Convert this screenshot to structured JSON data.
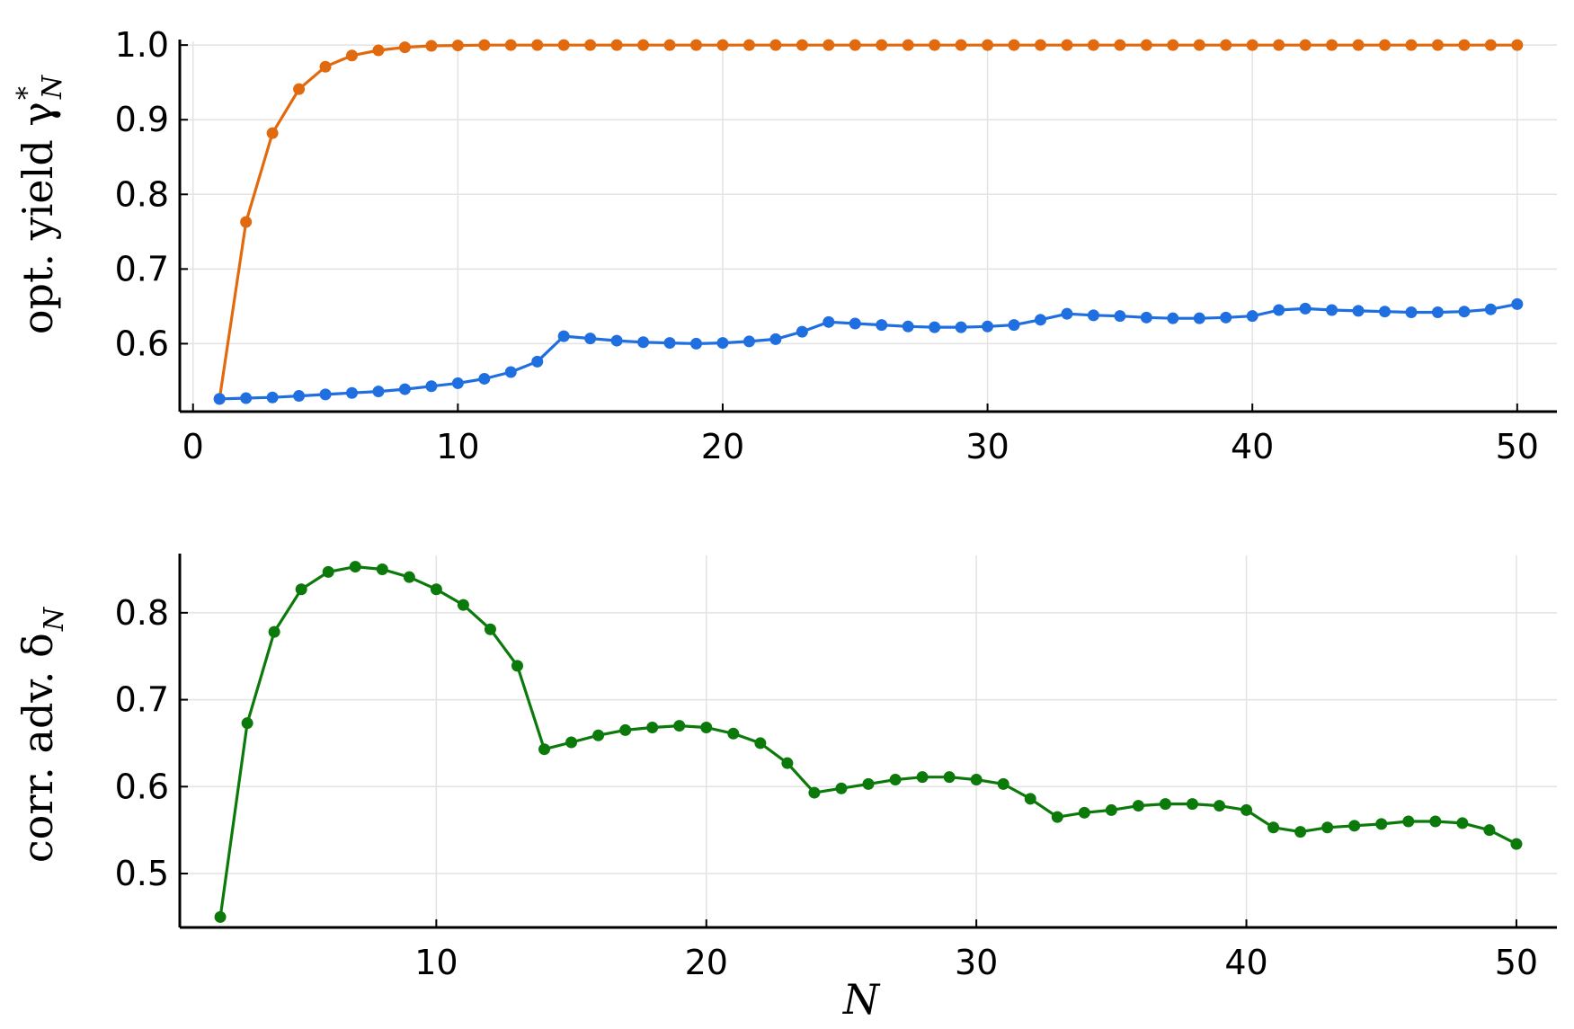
{
  "chart_data": [
    {
      "type": "line",
      "ylabel": "opt. yield γ",
      "ylabel_sup": "*",
      "ylabel_sub": "N",
      "xlim": [
        -0.5,
        51.5
      ],
      "ylim": [
        0.509,
        1.005
      ],
      "xticks": [
        0,
        10,
        20,
        30,
        40,
        50
      ],
      "yticks": [
        0.6,
        0.7,
        0.8,
        0.9,
        1.0
      ],
      "ytick_labels": [
        "0.6",
        "0.7",
        "0.8",
        "0.9",
        "1.0"
      ],
      "xtick_labels": [
        "0",
        "10",
        "20",
        "30",
        "40",
        "50"
      ],
      "grid": true,
      "series": [
        {
          "color": "#e26a0e",
          "x": [
            1,
            2,
            3,
            4,
            5,
            6,
            7,
            8,
            9,
            10,
            11,
            12,
            13,
            14,
            15,
            16,
            17,
            18,
            19,
            20,
            21,
            22,
            23,
            24,
            25,
            26,
            27,
            28,
            29,
            30,
            31,
            32,
            33,
            34,
            35,
            36,
            37,
            38,
            39,
            40,
            41,
            42,
            43,
            44,
            45,
            46,
            47,
            48,
            49,
            50
          ],
          "values": [
            0.526,
            0.763,
            0.882,
            0.941,
            0.971,
            0.986,
            0.993,
            0.997,
            0.999,
            0.9995,
            1,
            1,
            1,
            1,
            1,
            1,
            1,
            1,
            1,
            1,
            1,
            1,
            1,
            1,
            1,
            1,
            1,
            1,
            1,
            1,
            1,
            1,
            1,
            1,
            1,
            1,
            1,
            1,
            1,
            1,
            1,
            1,
            1,
            1,
            1,
            1,
            1,
            1,
            1,
            1
          ]
        },
        {
          "color": "#1f6fe0",
          "x": [
            1,
            2,
            3,
            4,
            5,
            6,
            7,
            8,
            9,
            10,
            11,
            12,
            13,
            14,
            15,
            16,
            17,
            18,
            19,
            20,
            21,
            22,
            23,
            24,
            25,
            26,
            27,
            28,
            29,
            30,
            31,
            32,
            33,
            34,
            35,
            36,
            37,
            38,
            39,
            40,
            41,
            42,
            43,
            44,
            45,
            46,
            47,
            48,
            49,
            50
          ],
          "values": [
            0.526,
            0.527,
            0.528,
            0.53,
            0.532,
            0.534,
            0.536,
            0.539,
            0.543,
            0.547,
            0.553,
            0.562,
            0.576,
            0.61,
            0.607,
            0.604,
            0.602,
            0.601,
            0.6,
            0.601,
            0.603,
            0.606,
            0.616,
            0.629,
            0.627,
            0.625,
            0.623,
            0.622,
            0.622,
            0.623,
            0.625,
            0.632,
            0.64,
            0.638,
            0.637,
            0.635,
            0.634,
            0.634,
            0.635,
            0.637,
            0.645,
            0.647,
            0.645,
            0.644,
            0.643,
            0.642,
            0.642,
            0.643,
            0.646,
            0.653
          ]
        }
      ]
    },
    {
      "type": "line",
      "ylabel": "corr. adv. δ",
      "ylabel_sub": "N",
      "xlabel": "N",
      "xlim": [
        0.5,
        51.5
      ],
      "ylim": [
        0.438,
        0.866
      ],
      "xticks": [
        10,
        20,
        30,
        40,
        50
      ],
      "yticks": [
        0.5,
        0.6,
        0.7,
        0.8
      ],
      "ytick_labels": [
        "0.5",
        "0.6",
        "0.7",
        "0.8"
      ],
      "xtick_labels": [
        "10",
        "20",
        "30",
        "40",
        "50"
      ],
      "grid": true,
      "series": [
        {
          "color": "#0b7a0b",
          "x": [
            2,
            3,
            4,
            5,
            6,
            7,
            8,
            9,
            10,
            11,
            12,
            13,
            14,
            15,
            16,
            17,
            18,
            19,
            20,
            21,
            22,
            23,
            24,
            25,
            26,
            27,
            28,
            29,
            30,
            31,
            32,
            33,
            34,
            35,
            36,
            37,
            38,
            39,
            40,
            41,
            42,
            43,
            44,
            45,
            46,
            47,
            48,
            49,
            50
          ],
          "values": [
            0.45,
            0.673,
            0.778,
            0.827,
            0.847,
            0.853,
            0.85,
            0.841,
            0.827,
            0.809,
            0.781,
            0.739,
            0.643,
            0.651,
            0.659,
            0.665,
            0.668,
            0.67,
            0.668,
            0.661,
            0.65,
            0.627,
            0.593,
            0.598,
            0.603,
            0.608,
            0.611,
            0.611,
            0.608,
            0.603,
            0.586,
            0.565,
            0.57,
            0.573,
            0.578,
            0.58,
            0.58,
            0.578,
            0.573,
            0.553,
            0.548,
            0.553,
            0.555,
            0.557,
            0.56,
            0.56,
            0.558,
            0.55,
            0.534
          ]
        }
      ]
    }
  ]
}
